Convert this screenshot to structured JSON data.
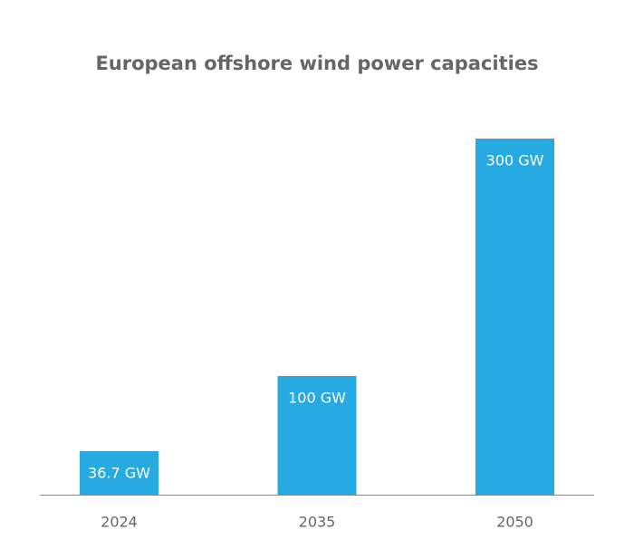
{
  "chart_data": {
    "type": "bar",
    "title": "European offshore wind power capacities",
    "categories": [
      "2024",
      "2035",
      "2050"
    ],
    "values": [
      36.7,
      100,
      300
    ],
    "value_labels": [
      "36.7 GW",
      "100 GW",
      "300 GW"
    ],
    "color": "#27aae1"
  }
}
